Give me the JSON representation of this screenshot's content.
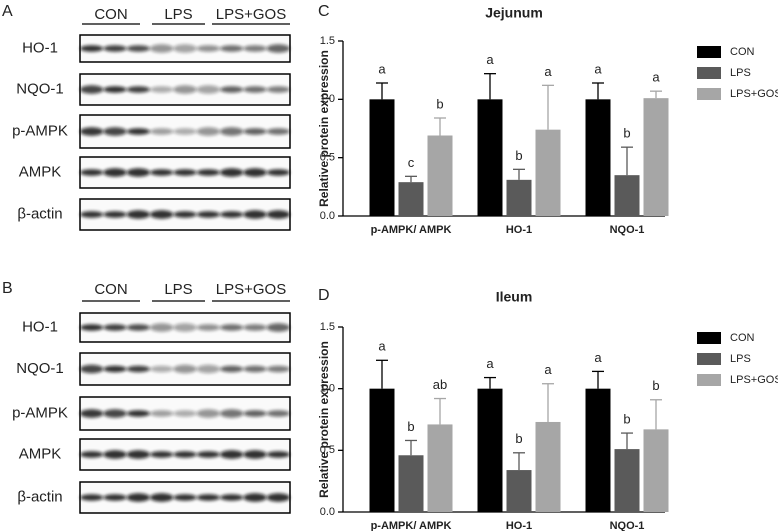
{
  "panel_letters": [
    "A",
    "B",
    "C",
    "D"
  ],
  "blots": [
    {
      "groups": [
        "CON",
        "LPS",
        "LPS+GOS"
      ],
      "proteins": [
        "HO-1",
        "NQO-1",
        "p-AMPK",
        "AMPK",
        "β-actin"
      ]
    },
    {
      "groups": [
        "CON",
        "LPS",
        "LPS+GOS"
      ],
      "proteins": [
        "HO-1",
        "NQO-1",
        "p-AMPK",
        "AMPK",
        "β-actin"
      ]
    }
  ],
  "chart_data": [
    {
      "type": "bar",
      "title": "Jejunum",
      "ylabel": "Relative protein expression",
      "categories": [
        "p-AMPK/ AMPK",
        "HO-1",
        "NQO-1"
      ],
      "ylim": [
        0,
        1.5
      ],
      "yticks": [
        {
          "value": 0,
          "label": "0.0"
        },
        {
          "value": 0.5,
          "label": "0.5"
        },
        {
          "value": 1,
          "label": "1.0"
        },
        {
          "value": 1.5,
          "label": "1.5"
        }
      ],
      "series": [
        {
          "name": "CON",
          "color": "#000000",
          "values": [
            1.0,
            1.0,
            1.0
          ],
          "errors": [
            0.14,
            0.22,
            0.14
          ],
          "letters": [
            "a",
            "a",
            "a"
          ]
        },
        {
          "name": "LPS",
          "color": "#5a5a5a",
          "values": [
            0.29,
            0.31,
            0.35
          ],
          "errors": [
            0.05,
            0.09,
            0.24
          ],
          "letters": [
            "c",
            "b",
            "b"
          ]
        },
        {
          "name": "LPS+GOS",
          "color": "#a6a6a6",
          "values": [
            0.69,
            0.74,
            1.01
          ],
          "errors": [
            0.15,
            0.38,
            0.06
          ],
          "letters": [
            "b",
            "a",
            "a"
          ]
        }
      ]
    },
    {
      "type": "bar",
      "title": "Ileum",
      "ylabel": "Relative protein expression",
      "categories": [
        "p-AMPK/ AMPK",
        "HO-1",
        "NQO-1"
      ],
      "ylim": [
        0,
        1.5
      ],
      "yticks": [
        {
          "value": 0,
          "label": "0.0"
        },
        {
          "value": 0.5,
          "label": "0.5"
        },
        {
          "value": 1,
          "label": "1.0"
        },
        {
          "value": 1.5,
          "label": "1.5"
        }
      ],
      "series": [
        {
          "name": "CON",
          "color": "#000000",
          "values": [
            1.0,
            1.0,
            1.0
          ],
          "errors": [
            0.23,
            0.09,
            0.14
          ],
          "letters": [
            "a",
            "a",
            "a"
          ]
        },
        {
          "name": "LPS",
          "color": "#5a5a5a",
          "values": [
            0.46,
            0.34,
            0.51
          ],
          "errors": [
            0.12,
            0.14,
            0.13
          ],
          "letters": [
            "b",
            "b",
            "b"
          ]
        },
        {
          "name": "LPS+GOS",
          "color": "#a6a6a6",
          "values": [
            0.71,
            0.73,
            0.67
          ],
          "errors": [
            0.21,
            0.31,
            0.24
          ],
          "letters": [
            "ab",
            "a",
            "b"
          ]
        }
      ]
    }
  ]
}
